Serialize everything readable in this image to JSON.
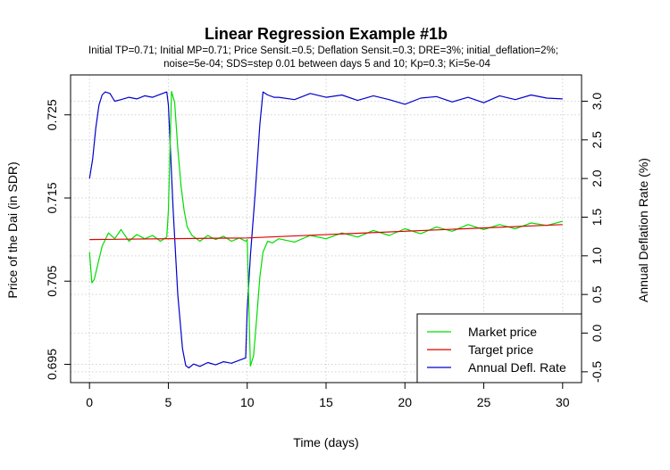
{
  "chart_data": {
    "type": "line",
    "title": "Linear Regression Example #1b",
    "subtitle_lines": [
      "Initial TP=0.71; Initial MP=0.71; Price Sensit.=0.5; Deflation Sensit.=0.3; DRE=3%; initial_deflation=2%;",
      "noise=5e-04; SDS=step 0.01 between days 5 and 10; Kp=0.3; Ki=5e-04"
    ],
    "xlabel": "Time (days)",
    "ylabel_left": "Price of the Dai (in SDR)",
    "ylabel_right": "Annual Deflation Rate (%)",
    "xlim": [
      -1.2,
      31.2
    ],
    "xticks": [
      0,
      5,
      10,
      15,
      20,
      25,
      30
    ],
    "ylim_left": [
      0.6928,
      0.7298
    ],
    "yticks_left": [
      0.695,
      0.705,
      0.715,
      0.725
    ],
    "ylim_right": [
      -0.64,
      3.34
    ],
    "yticks_right": [
      -0.5,
      0.0,
      0.5,
      1.0,
      1.5,
      2.0,
      2.5,
      3.0
    ],
    "grid": true,
    "legend_position": "bottom-right",
    "series": [
      {
        "name": "Market price",
        "axis": "left",
        "color": "#00dd00",
        "x": [
          0,
          0.15,
          0.3,
          0.5,
          0.8,
          1.2,
          1.6,
          2.0,
          2.5,
          3,
          3.5,
          4,
          4.5,
          4.9,
          5.0,
          5.2,
          5.4,
          5.6,
          5.8,
          6.0,
          6.2,
          6.5,
          7,
          7.5,
          8,
          8.5,
          9,
          9.5,
          9.9,
          10.0,
          10.2,
          10.4,
          10.6,
          10.8,
          11.0,
          11.3,
          11.6,
          12,
          13,
          14,
          15,
          16,
          17,
          18,
          19,
          20,
          21,
          22,
          23,
          24,
          25,
          26,
          27,
          28,
          29,
          30
        ],
        "y": [
          0.7085,
          0.7048,
          0.7052,
          0.7068,
          0.7092,
          0.7108,
          0.7101,
          0.7112,
          0.7098,
          0.7106,
          0.7101,
          0.7105,
          0.7098,
          0.7103,
          0.7135,
          0.7278,
          0.7265,
          0.721,
          0.7165,
          0.7135,
          0.7115,
          0.7105,
          0.7098,
          0.7105,
          0.71,
          0.7104,
          0.7098,
          0.7102,
          0.7098,
          0.71,
          0.6948,
          0.696,
          0.7005,
          0.7055,
          0.7085,
          0.7098,
          0.7096,
          0.7101,
          0.7097,
          0.7105,
          0.7101,
          0.7108,
          0.7103,
          0.7111,
          0.7105,
          0.7113,
          0.7107,
          0.7115,
          0.711,
          0.7118,
          0.7112,
          0.7118,
          0.7113,
          0.712,
          0.7117,
          0.7122
        ]
      },
      {
        "name": "Target price",
        "axis": "left",
        "color": "#e00000",
        "x": [
          0,
          10,
          30
        ],
        "y": [
          0.71,
          0.7102,
          0.7118
        ]
      },
      {
        "name": "Annual Defl. Rate",
        "axis": "right",
        "color": "#0000cc",
        "x": [
          0,
          0.2,
          0.4,
          0.6,
          0.8,
          1.0,
          1.3,
          1.6,
          2.0,
          2.5,
          3,
          3.5,
          4,
          4.5,
          4.9,
          5.0,
          5.3,
          5.6,
          5.9,
          6.1,
          6.3,
          6.6,
          7,
          7.5,
          8,
          8.5,
          9,
          9.5,
          9.9,
          10.0,
          10.2,
          10.5,
          10.8,
          11.0,
          11.3,
          11.7,
          12,
          13,
          14,
          15,
          16,
          17,
          18,
          19,
          20,
          21,
          22,
          23,
          24,
          25,
          26,
          27,
          28,
          29,
          30
        ],
        "y": [
          2.0,
          2.25,
          2.65,
          2.95,
          3.08,
          3.12,
          3.1,
          3.0,
          3.02,
          3.05,
          3.03,
          3.07,
          3.05,
          3.09,
          3.12,
          2.95,
          1.6,
          0.5,
          -0.2,
          -0.42,
          -0.45,
          -0.4,
          -0.43,
          -0.38,
          -0.41,
          -0.37,
          -0.39,
          -0.35,
          -0.32,
          0.3,
          1.0,
          1.8,
          2.7,
          3.12,
          3.08,
          3.05,
          3.05,
          3.02,
          3.1,
          3.05,
          3.08,
          3.01,
          3.07,
          3.02,
          2.96,
          3.04,
          3.06,
          2.99,
          3.05,
          2.98,
          3.07,
          3.02,
          3.08,
          3.04,
          3.03
        ]
      }
    ]
  }
}
